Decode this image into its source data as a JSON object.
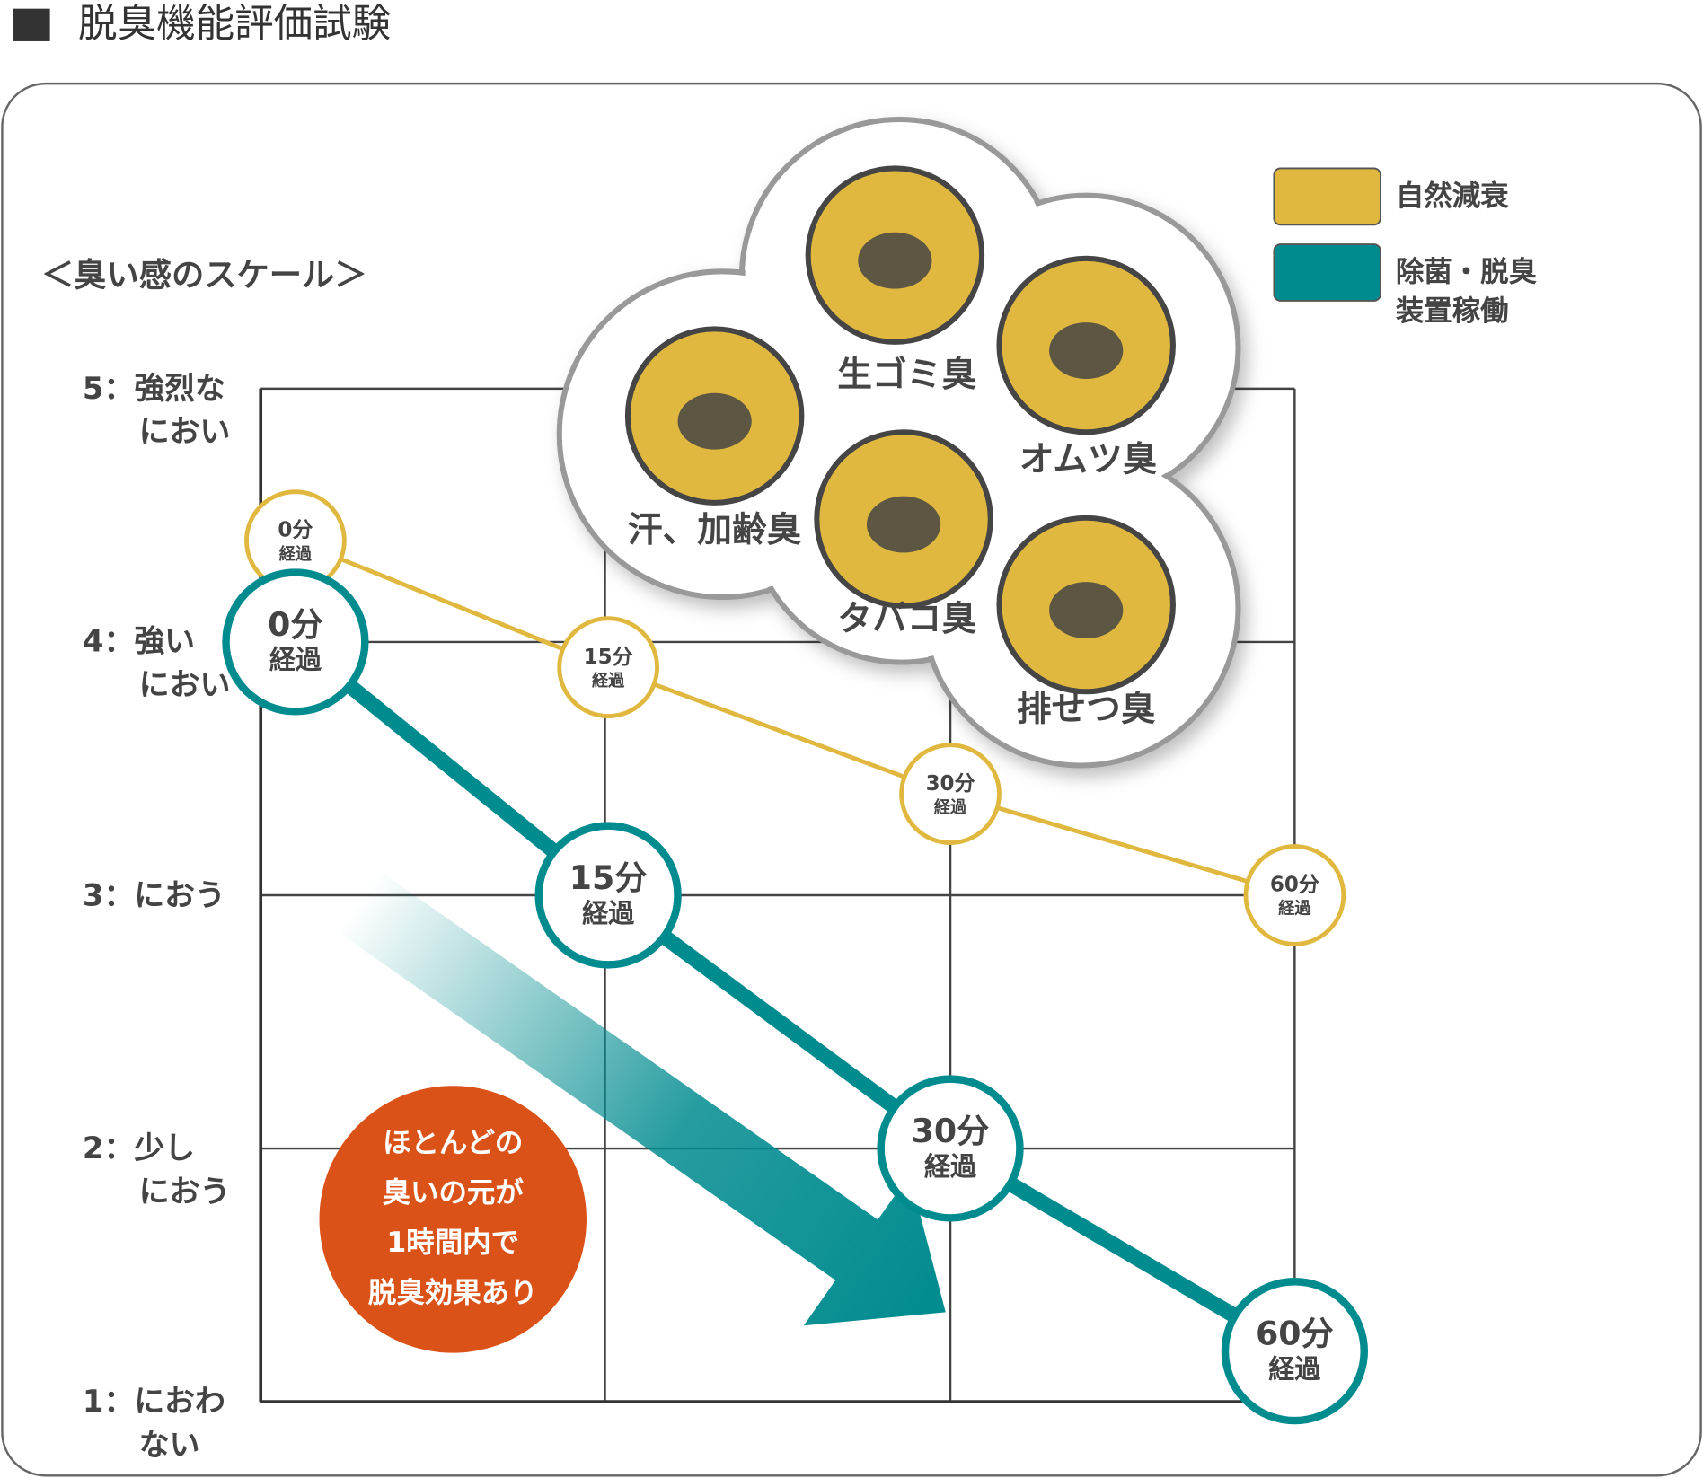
{
  "title": "脱臭機能評価試験",
  "chart_data": {
    "type": "line",
    "y_axis_title": "＜臭い感のスケール＞",
    "categories": [
      "0分",
      "15分",
      "30分",
      "60分"
    ],
    "point_suffix": "経過",
    "series": [
      {
        "name": "自然減衰",
        "color": "#e0b83f",
        "values": [
          4.4,
          3.9,
          3.4,
          3.0
        ]
      },
      {
        "name": "除菌・脱臭\n装置稼働",
        "color": "#008b8f",
        "values": [
          4.0,
          3.0,
          2.0,
          1.2
        ]
      }
    ],
    "ylim": [
      1,
      5
    ],
    "yticks": [
      {
        "value": 1,
        "label": "1：におわ\nない"
      },
      {
        "value": 2,
        "label": "2：少し\nにおう"
      },
      {
        "value": 3,
        "label": "3：におう"
      },
      {
        "value": 4,
        "label": "4：強い\nにおい"
      },
      {
        "value": 5,
        "label": "5：強烈な\nにおい"
      }
    ],
    "grid": true,
    "legend": "top-right",
    "annotation": "ほとんどの\n臭いの元が\n1時間内で\n脱臭効果あり"
  },
  "odor_types": [
    "生ゴミ臭",
    "オムツ臭",
    "汗、加齢臭",
    "タバコ臭",
    "排せつ臭"
  ]
}
